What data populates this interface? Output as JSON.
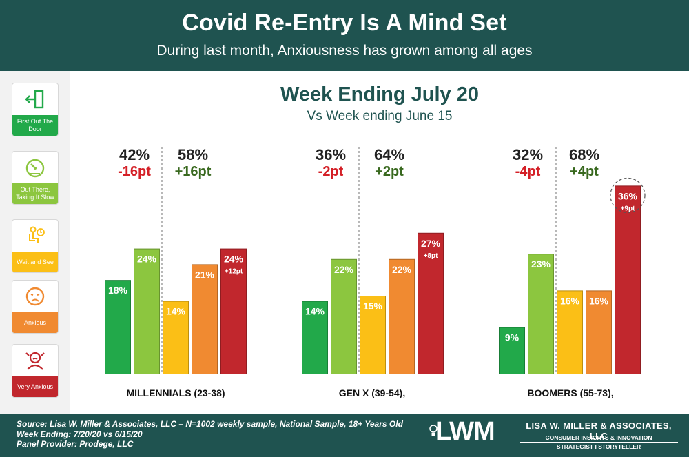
{
  "header": {
    "title": "Covid Re-Entry Is A Mind Set",
    "subtitle": "During last month, Anxiousness has grown among all ages"
  },
  "legend": {
    "items": [
      {
        "label": "First Out The Door",
        "color": "#22a94a",
        "icon": "exit-door-icon"
      },
      {
        "label": "Out There, Taking It Slow",
        "color": "#8cc63f",
        "icon": "speedometer-icon"
      },
      {
        "label": "Wait and See",
        "color": "#fbbf16",
        "icon": "waiting-person-icon"
      },
      {
        "label": "Anxious",
        "color": "#f08a31",
        "icon": "anxious-face-icon"
      },
      {
        "label": "Very Anxious",
        "color": "#c1272d",
        "icon": "stressed-person-icon"
      }
    ]
  },
  "chart_data": {
    "type": "bar",
    "title": "Week Ending July 20",
    "subtitle": "Vs Week ending June 15",
    "categories": [
      "First Out The Door",
      "Out There, Taking It Slow",
      "Wait and See",
      "Anxious",
      "Very Anxious"
    ],
    "colors": [
      "#22a94a",
      "#8cc63f",
      "#fbbf16",
      "#f08a31",
      "#c1272d"
    ],
    "ylim": [
      0,
      40
    ],
    "groups": [
      {
        "name": "MILLENNIALS (23-38)",
        "values": [
          18,
          24,
          14,
          21,
          24
        ],
        "value_labels": [
          "18%",
          "24%",
          "14%",
          "21%",
          "24%"
        ],
        "change_label": "+12pt",
        "left_pct": "42%",
        "left_delta": "-16pt",
        "right_pct": "58%",
        "right_delta": "+16pt"
      },
      {
        "name": "GEN X (39-54),",
        "values": [
          14,
          22,
          15,
          22,
          27
        ],
        "value_labels": [
          "14%",
          "22%",
          "15%",
          "22%",
          "27%"
        ],
        "change_label": "+8pt",
        "left_pct": "36%",
        "left_delta": "-2pt",
        "right_pct": "64%",
        "right_delta": "+2pt"
      },
      {
        "name": "BOOMERS (55-73),",
        "values": [
          9,
          23,
          16,
          16,
          36
        ],
        "value_labels": [
          "9%",
          "23%",
          "16%",
          "16%",
          "36%"
        ],
        "change_label": "+9pt",
        "left_pct": "32%",
        "left_delta": "-4pt",
        "right_pct": "68%",
        "right_delta": "+4pt",
        "highlight": true
      }
    ]
  },
  "footer": {
    "line1": "Source: Lisa W. Miller & Associates, LLC  –  N=1002 weekly sample, National Sample, 18+ Years Old",
    "line2": "Week Ending: 7/20/20 vs 6/15/20",
    "line3": "Panel Provider: Prodege, LLC",
    "logo": "LWM",
    "firm": "LISA W. MILLER & ASSOCIATES, LLC",
    "tagline1": "CONSUMER INSIGHTS & INNOVATION",
    "tagline2": "STRATEGIST I STORYTELLER"
  }
}
